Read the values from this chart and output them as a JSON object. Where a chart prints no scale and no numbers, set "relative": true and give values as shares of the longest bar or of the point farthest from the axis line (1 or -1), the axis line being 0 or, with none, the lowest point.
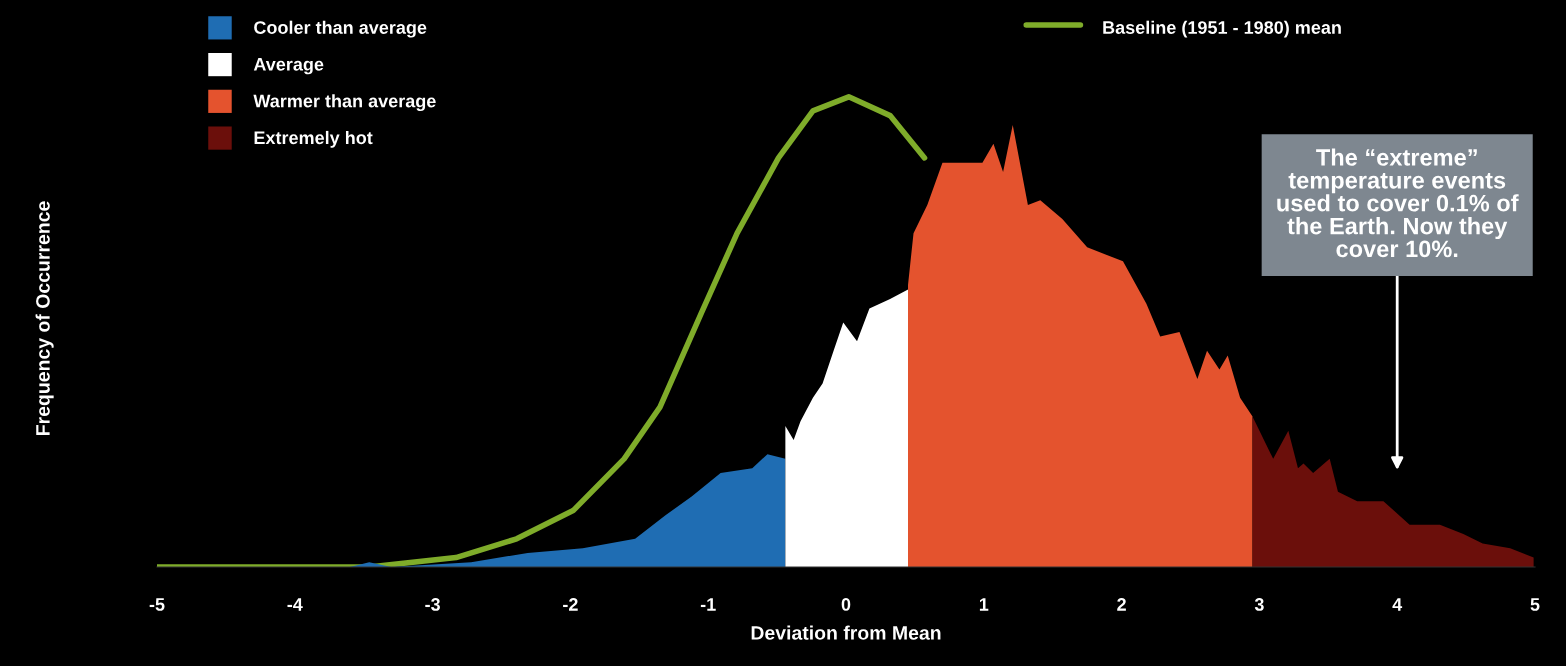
{
  "chart_data": {
    "type": "area",
    "relative": true,
    "xlabel": "Deviation from Mean",
    "ylabel": "Frequency of Occurrence",
    "xlim": [
      -5,
      5
    ],
    "xticks": [
      -5,
      -4,
      -3,
      -2,
      -1,
      0,
      1,
      2,
      3,
      4,
      5
    ],
    "grid": false,
    "legend": "top",
    "annotations": [
      "The “extreme”\ntemperature events\nused to cover 0.1% of\nthe Earth. Now they\ncover 10%."
    ],
    "series": [
      {
        "name": "Cooler than average",
        "type": "area",
        "color": "#1f6db3",
        "x": [
          -5,
          -4,
          -3.6,
          -3.46,
          -3.3,
          -2.72,
          -2.31,
          -1.91,
          -1.53,
          -1.31,
          -1.12,
          -0.91,
          -0.68,
          -0.57,
          -0.44
        ],
        "values": [
          0,
          0,
          0,
          0.01,
          0,
          0.01,
          0.03,
          0.04,
          0.06,
          0.11,
          0.15,
          0.2,
          0.21,
          0.24,
          0.23
        ]
      },
      {
        "name": "Average",
        "type": "area",
        "color": "#ffffff",
        "x": [
          -0.44,
          -0.38,
          -0.33,
          -0.24,
          -0.17,
          -0.09,
          -0.02,
          0.08,
          0.17,
          0.32,
          0.45
        ],
        "values": [
          0.3,
          0.27,
          0.31,
          0.36,
          0.39,
          0.46,
          0.52,
          0.48,
          0.55,
          0.57,
          0.59
        ]
      },
      {
        "name": "Warmer than average",
        "type": "area",
        "color": "#e4532e",
        "x": [
          0.45,
          0.49,
          0.59,
          0.7,
          0.83,
          0.99,
          1.07,
          1.14,
          1.21,
          1.32,
          1.41,
          1.57,
          1.75,
          2.01,
          2.18,
          2.28,
          2.42,
          2.55,
          2.62,
          2.71,
          2.77,
          2.86,
          2.95
        ],
        "values": [
          0.6,
          0.71,
          0.77,
          0.86,
          0.86,
          0.86,
          0.9,
          0.84,
          0.94,
          0.77,
          0.78,
          0.74,
          0.68,
          0.65,
          0.56,
          0.49,
          0.5,
          0.4,
          0.46,
          0.42,
          0.45,
          0.36,
          0.32
        ]
      },
      {
        "name": "Extremely hot",
        "type": "area",
        "color": "#6b0f0b",
        "x": [
          2.95,
          3.1,
          3.21,
          3.28,
          3.32,
          3.39,
          3.51,
          3.57,
          3.71,
          3.9,
          4.09,
          4.31,
          4.48,
          4.62,
          4.82,
          4.99
        ],
        "values": [
          0.32,
          0.23,
          0.29,
          0.21,
          0.22,
          0.2,
          0.23,
          0.16,
          0.14,
          0.14,
          0.09,
          0.09,
          0.07,
          0.05,
          0.04,
          0.02
        ]
      },
      {
        "name": "Baseline (1951 - 1980) mean",
        "type": "line",
        "color": "#7fac2a",
        "line_style": "solid",
        "x": [
          -5,
          -4,
          -3.46,
          -2.83,
          -2.39,
          -1.98,
          -1.61,
          -1.35,
          -1.05,
          -0.79,
          -0.49,
          -0.24,
          0.02,
          0.32,
          0.57
        ],
        "values": [
          0,
          0,
          0,
          0.02,
          0.06,
          0.12,
          0.23,
          0.34,
          0.54,
          0.71,
          0.87,
          0.97,
          1.0,
          0.96,
          0.87
        ]
      }
    ]
  }
}
